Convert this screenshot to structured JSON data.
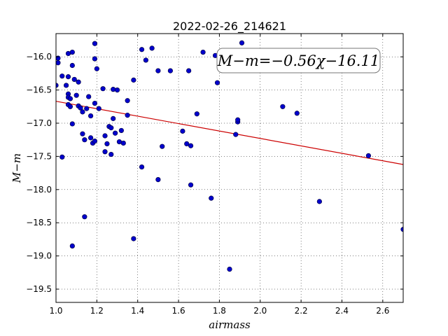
{
  "chart_data": {
    "type": "scatter",
    "title": "2022-02-26_214621",
    "xlabel": "airmass",
    "ylabel": "M−m",
    "xlim": [
      1.0,
      2.7
    ],
    "ylim": [
      -15.65,
      -19.7
    ],
    "y_axis_inverted": true,
    "grid": true,
    "xticks": [
      1.0,
      1.2,
      1.4,
      1.6,
      1.8,
      2.0,
      2.2,
      2.4,
      2.6
    ],
    "xtick_labels": [
      "1.0",
      "1.2",
      "1.4",
      "1.6",
      "1.8",
      "2.0",
      "2.2",
      "2.4",
      "2.6"
    ],
    "yticks": [
      -16.0,
      -16.5,
      -17.0,
      -17.5,
      -18.0,
      -18.5,
      -19.0,
      -19.5
    ],
    "ytick_labels": [
      "−16.0",
      "−16.5",
      "−17.0",
      "−17.5",
      "−18.0",
      "−18.5",
      "−19.0",
      "−19.5"
    ],
    "point_color": "#0000cc",
    "line_color": "#cc0000",
    "fit": {
      "slope": -0.56,
      "intercept": -16.11,
      "x_range": [
        1.0,
        2.7
      ]
    },
    "annotation": "M−m=−0.56χ−16.11",
    "points": [
      {
        "x": 1.0,
        "y": -16.43
      },
      {
        "x": 1.01,
        "y": -16.02
      },
      {
        "x": 1.01,
        "y": -16.09
      },
      {
        "x": 1.03,
        "y": -16.29
      },
      {
        "x": 1.03,
        "y": -17.51
      },
      {
        "x": 1.05,
        "y": -16.43
      },
      {
        "x": 1.06,
        "y": -15.95
      },
      {
        "x": 1.06,
        "y": -16.3
      },
      {
        "x": 1.06,
        "y": -16.56
      },
      {
        "x": 1.06,
        "y": -16.61
      },
      {
        "x": 1.06,
        "y": -16.72
      },
      {
        "x": 1.07,
        "y": -16.63
      },
      {
        "x": 1.07,
        "y": -16.75
      },
      {
        "x": 1.08,
        "y": -15.93
      },
      {
        "x": 1.08,
        "y": -16.13
      },
      {
        "x": 1.08,
        "y": -17.01
      },
      {
        "x": 1.08,
        "y": -18.85
      },
      {
        "x": 1.09,
        "y": -16.34
      },
      {
        "x": 1.1,
        "y": -16.58
      },
      {
        "x": 1.11,
        "y": -16.38
      },
      {
        "x": 1.11,
        "y": -16.74
      },
      {
        "x": 1.12,
        "y": -16.77
      },
      {
        "x": 1.13,
        "y": -17.16
      },
      {
        "x": 1.13,
        "y": -16.83
      },
      {
        "x": 1.14,
        "y": -17.25
      },
      {
        "x": 1.14,
        "y": -18.41
      },
      {
        "x": 1.15,
        "y": -16.78
      },
      {
        "x": 1.16,
        "y": -16.6
      },
      {
        "x": 1.17,
        "y": -16.89
      },
      {
        "x": 1.17,
        "y": -17.22
      },
      {
        "x": 1.18,
        "y": -17.3
      },
      {
        "x": 1.19,
        "y": -15.8
      },
      {
        "x": 1.19,
        "y": -16.03
      },
      {
        "x": 1.19,
        "y": -16.7
      },
      {
        "x": 1.19,
        "y": -17.27
      },
      {
        "x": 1.2,
        "y": -16.18
      },
      {
        "x": 1.21,
        "y": -16.78
      },
      {
        "x": 1.23,
        "y": -16.48
      },
      {
        "x": 1.24,
        "y": -17.19
      },
      {
        "x": 1.24,
        "y": -17.43
      },
      {
        "x": 1.25,
        "y": -17.31
      },
      {
        "x": 1.26,
        "y": -17.05
      },
      {
        "x": 1.27,
        "y": -17.07
      },
      {
        "x": 1.27,
        "y": -17.47
      },
      {
        "x": 1.28,
        "y": -16.49
      },
      {
        "x": 1.28,
        "y": -16.93
      },
      {
        "x": 1.29,
        "y": -17.15
      },
      {
        "x": 1.3,
        "y": -16.5
      },
      {
        "x": 1.31,
        "y": -17.28
      },
      {
        "x": 1.32,
        "y": -17.11
      },
      {
        "x": 1.33,
        "y": -17.3
      },
      {
        "x": 1.35,
        "y": -16.66
      },
      {
        "x": 1.35,
        "y": -16.88
      },
      {
        "x": 1.38,
        "y": -16.35
      },
      {
        "x": 1.38,
        "y": -18.74
      },
      {
        "x": 1.42,
        "y": -15.89
      },
      {
        "x": 1.42,
        "y": -17.66
      },
      {
        "x": 1.44,
        "y": -16.05
      },
      {
        "x": 1.47,
        "y": -15.87
      },
      {
        "x": 1.5,
        "y": -16.21
      },
      {
        "x": 1.5,
        "y": -17.85
      },
      {
        "x": 1.52,
        "y": -17.35
      },
      {
        "x": 1.56,
        "y": -16.21
      },
      {
        "x": 1.62,
        "y": -17.12
      },
      {
        "x": 1.64,
        "y": -17.31
      },
      {
        "x": 1.65,
        "y": -16.21
      },
      {
        "x": 1.66,
        "y": -17.34
      },
      {
        "x": 1.66,
        "y": -17.93
      },
      {
        "x": 1.69,
        "y": -16.86
      },
      {
        "x": 1.72,
        "y": -15.93
      },
      {
        "x": 1.76,
        "y": -18.13
      },
      {
        "x": 1.78,
        "y": -15.98
      },
      {
        "x": 1.79,
        "y": -16.39
      },
      {
        "x": 1.85,
        "y": -19.2
      },
      {
        "x": 1.88,
        "y": -17.17
      },
      {
        "x": 1.89,
        "y": -16.98
      },
      {
        "x": 1.89,
        "y": -16.95
      },
      {
        "x": 1.91,
        "y": -15.79
      },
      {
        "x": 2.11,
        "y": -16.75
      },
      {
        "x": 2.18,
        "y": -16.85
      },
      {
        "x": 2.29,
        "y": -18.18
      },
      {
        "x": 2.53,
        "y": -17.49
      },
      {
        "x": 2.7,
        "y": -18.6
      }
    ]
  }
}
